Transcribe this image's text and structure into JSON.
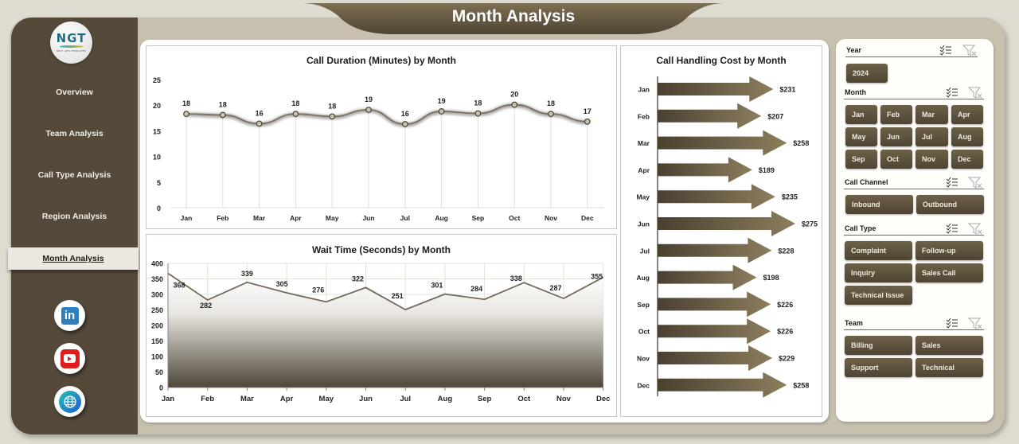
{
  "header": {
    "title": "Month Analysis"
  },
  "logo": {
    "mark": "NGT",
    "subtitle": "NEXT GEN TEMPLATES"
  },
  "sidebar": {
    "items": [
      {
        "label": "Overview",
        "active": false
      },
      {
        "label": "Team Analysis",
        "active": false
      },
      {
        "label": "Call Type Analysis",
        "active": false
      },
      {
        "label": "Region Analysis",
        "active": false
      },
      {
        "label": "Month Analysis",
        "active": true
      }
    ],
    "social": [
      {
        "icon": "linkedin-icon",
        "glyph": "in"
      },
      {
        "icon": "youtube-icon"
      },
      {
        "icon": "globe-icon"
      }
    ]
  },
  "colors": {
    "sidebar": "#554a3a",
    "frame": "#c8c0ae",
    "accent_dark": "#4f4433",
    "accent_light": "#8a7c5c",
    "line": "#6f6552"
  },
  "chart_data": [
    {
      "type": "line",
      "title": "Call Duration (Minutes) by Month",
      "categories": [
        "Jan",
        "Feb",
        "Mar",
        "Apr",
        "May",
        "Jun",
        "Jul",
        "Aug",
        "Sep",
        "Oct",
        "Nov",
        "Dec"
      ],
      "values": [
        18.3,
        18.1,
        16.4,
        18.3,
        17.8,
        19.1,
        16.3,
        18.8,
        18.4,
        20.1,
        18.3,
        16.8
      ],
      "labels": [
        "18",
        "18",
        "16",
        "18",
        "18",
        "19",
        "16",
        "19",
        "18",
        "20",
        "18",
        "17"
      ],
      "ylim": [
        0,
        25
      ],
      "yticks": [
        0,
        5,
        10,
        15,
        20,
        25
      ],
      "xlabel": "",
      "ylabel": "",
      "grid": "vertical drop lines",
      "legend": "none"
    },
    {
      "type": "area",
      "title": "Wait Time (Seconds) by Month",
      "categories": [
        "Jan",
        "Feb",
        "Mar",
        "Apr",
        "May",
        "Jun",
        "Jul",
        "Aug",
        "Sep",
        "Oct",
        "Nov",
        "Dec"
      ],
      "values": [
        368,
        282,
        339,
        305,
        276,
        322,
        251,
        301,
        284,
        338,
        287,
        355
      ],
      "ylim": [
        0,
        400
      ],
      "yticks": [
        0,
        50,
        100,
        150,
        200,
        250,
        300,
        350,
        400
      ],
      "xlabel": "",
      "ylabel": "",
      "grid": "both",
      "legend": "none"
    },
    {
      "type": "bar",
      "orientation": "horizontal",
      "title": "Call Handling Cost by Month",
      "categories": [
        "Jan",
        "Feb",
        "Mar",
        "Apr",
        "May",
        "Jun",
        "Jul",
        "Aug",
        "Sep",
        "Oct",
        "Nov",
        "Dec"
      ],
      "values": [
        231,
        207,
        258,
        189,
        235,
        275,
        228,
        198,
        226,
        226,
        229,
        258
      ],
      "labels": [
        "$231",
        "$207",
        "$258",
        "$189",
        "$235",
        "$275",
        "$228",
        "$198",
        "$226",
        "$226",
        "$229",
        "$258"
      ],
      "xlabel": "",
      "ylabel": "",
      "legend": "none"
    }
  ],
  "slicers": [
    {
      "title": "Year",
      "items": [
        "2024"
      ]
    },
    {
      "title": "Month",
      "items": [
        "Jan",
        "Feb",
        "Mar",
        "Apr",
        "May",
        "Jun",
        "Jul",
        "Aug",
        "Sep",
        "Oct",
        "Nov",
        "Dec"
      ]
    },
    {
      "title": "Call Channel",
      "items": [
        "Inbound",
        "Outbound"
      ]
    },
    {
      "title": "Call Type",
      "items": [
        "Complaint",
        "Follow-up",
        "Inquiry",
        "Sales Call",
        "Technical Issue"
      ]
    },
    {
      "title": "Team",
      "items": [
        "Billing",
        "Sales",
        "Support",
        "Technical"
      ]
    }
  ]
}
